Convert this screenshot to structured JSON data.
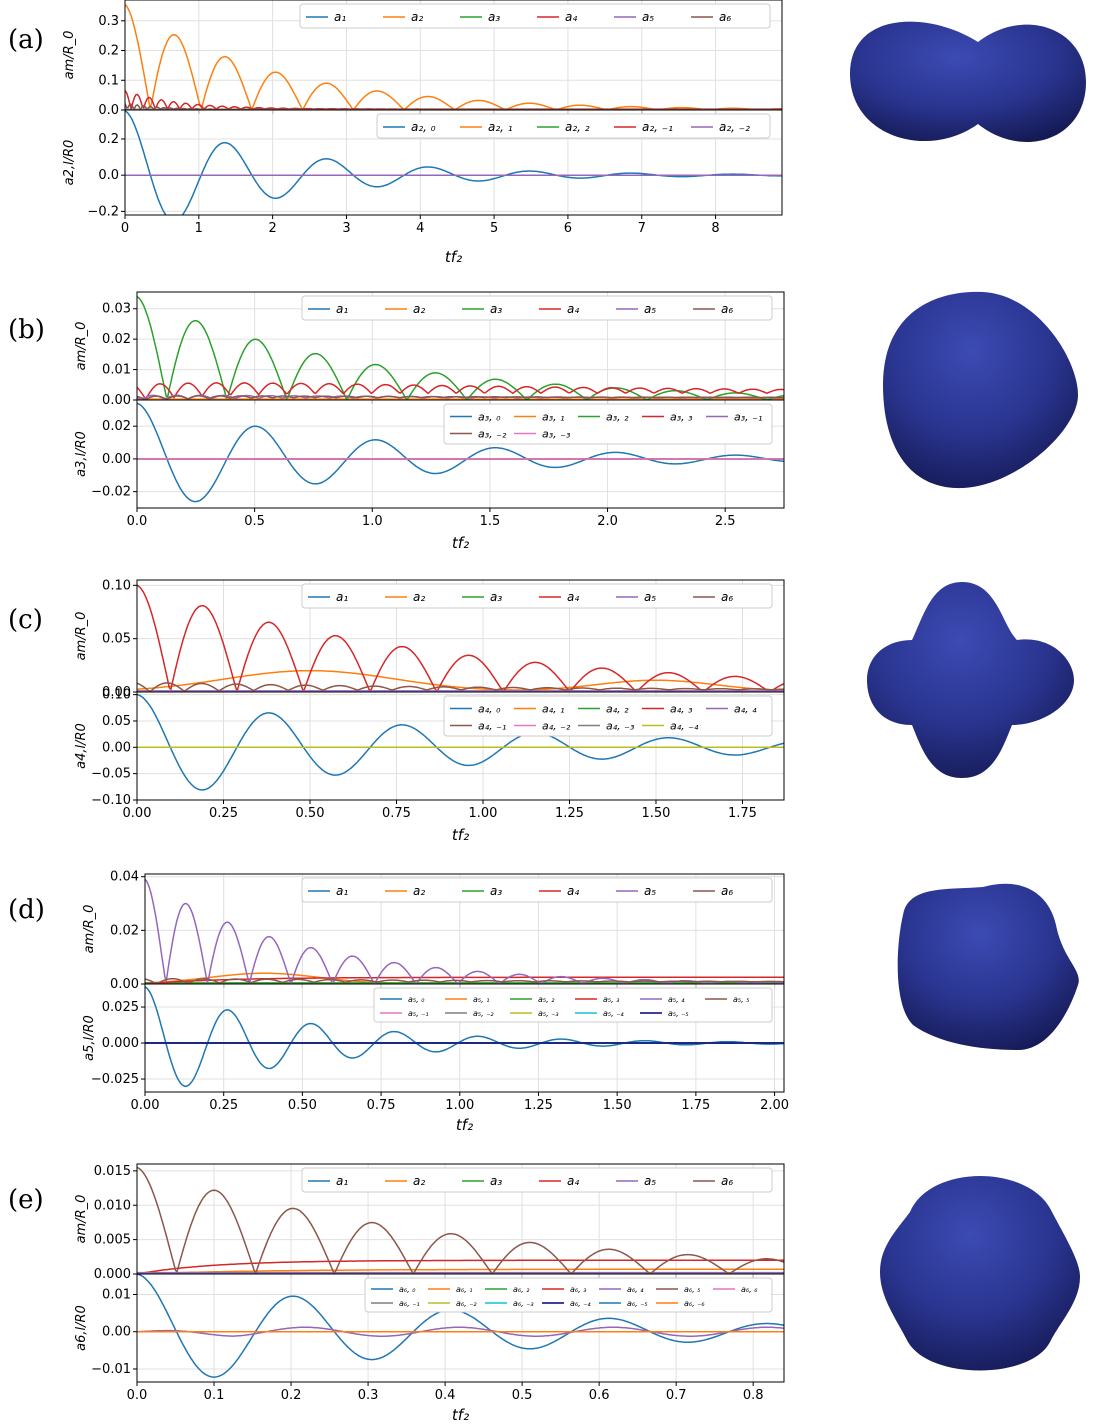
{
  "figure_title": "",
  "colors": {
    "C0": "#1f77b4",
    "C1": "#ff7f0e",
    "C2": "#2ca02c",
    "C3": "#d62728",
    "C4": "#9467bd",
    "C5": "#8c564b",
    "C6": "#e377c2",
    "C7": "#7f7f7f",
    "C8": "#bcbd22",
    "C9": "#17becf",
    "C10": "#000080",
    "shape_fill": "#2a3590",
    "shape_light": "#3c4bb4",
    "shape_dark": "#151a55"
  },
  "chart_data": [
    {
      "panel": "(a)",
      "type": "line",
      "xlabel": "tf₂",
      "xlim": [
        0,
        8.9
      ],
      "xticks": [
        "0",
        "1",
        "2",
        "3",
        "4",
        "5",
        "6",
        "7",
        "8"
      ],
      "shape_icon": "peanut-shape",
      "top": {
        "ylabel": "a_m/R_0",
        "ylim": [
          0,
          0.37
        ],
        "yticks": [
          "0.0",
          "0.1",
          "0.2",
          "0.3"
        ],
        "legend": [
          "a₁",
          "a₂",
          "a₃",
          "a₄",
          "a₅",
          "a₆"
        ],
        "legend_location": "upper right",
        "series": [
          {
            "name": "a₁",
            "kind": "flat",
            "a0": 0.001
          },
          {
            "name": "a₂",
            "kind": "damped_abs",
            "A": 0.355,
            "T": 1.375,
            "tau": 2.0,
            "phi": 0
          },
          {
            "name": "a₃",
            "kind": "flat",
            "a0": 0.002
          },
          {
            "name": "a₄",
            "kind": "damped_abs",
            "A": 0.065,
            "T": 0.33,
            "tau": 0.7,
            "phi": 0,
            "floor": 0.003
          },
          {
            "name": "a₅",
            "kind": "flat",
            "a0": 0.001
          },
          {
            "name": "a₆",
            "kind": "damped_abs",
            "A": 0.025,
            "T": 0.18,
            "tau": 0.4,
            "phi": 0.5,
            "floor": 0.002
          }
        ]
      },
      "bottom": {
        "ylabel": "a_{2,l}/R_0",
        "ylim": [
          -0.22,
          0.36
        ],
        "yticks": [
          "−0.2",
          "0.0",
          "0.2"
        ],
        "legend": [
          "a₂, ₀",
          "a₂, ₁",
          "a₂, ₂",
          "a₂, ₋₁",
          "a₂, ₋₂"
        ],
        "legend_location": "upper right",
        "series": [
          {
            "name": "a₂, ₀",
            "kind": "damped_cos",
            "A": 0.355,
            "T": 1.375,
            "tau": 2.0
          },
          {
            "name": "a₂, ₁",
            "kind": "flat",
            "a0": 0
          },
          {
            "name": "a₂, ₂",
            "kind": "flat",
            "a0": 0
          },
          {
            "name": "a₂, ₋₁",
            "kind": "flat",
            "a0": 0
          },
          {
            "name": "a₂, ₋₂",
            "kind": "flat",
            "a0": 0
          }
        ]
      }
    },
    {
      "panel": "(b)",
      "type": "line",
      "xlabel": "tf₂",
      "xlim": [
        0,
        2.75
      ],
      "xticks": [
        "0.0",
        "0.5",
        "1.0",
        "1.5",
        "2.0",
        "2.5"
      ],
      "shape_icon": "rounded-triangle-shape",
      "top": {
        "ylabel": "a_m/R_0",
        "ylim": [
          0,
          0.0355
        ],
        "yticks": [
          "0.00",
          "0.01",
          "0.02",
          "0.03"
        ],
        "legend": [
          "a₁",
          "a₂",
          "a₃",
          "a₄",
          "a₅",
          "a₆"
        ],
        "legend_location": "upper right",
        "series": [
          {
            "name": "a₁",
            "kind": "flat",
            "a0": 0.0002
          },
          {
            "name": "a₂",
            "kind": "flat",
            "a0": 0.0003
          },
          {
            "name": "a₃",
            "kind": "damped_abs",
            "A": 0.034,
            "T": 0.51,
            "tau": 0.95,
            "phi": 0
          },
          {
            "name": "a₄",
            "kind": "damped_abs",
            "A": 0.005,
            "T": 0.24,
            "tau": 2.0,
            "phi": 0.6,
            "floor": 0.0022
          },
          {
            "name": "a₅",
            "kind": "damped_abs",
            "A": 0.0015,
            "T": 0.2,
            "tau": 1.0,
            "phi": 1.0,
            "floor": 0.0007
          },
          {
            "name": "a₆",
            "kind": "damped_abs",
            "A": 0.0012,
            "T": 0.18,
            "tau": 1.0,
            "phi": 0.3,
            "floor": 0.0008
          }
        ]
      },
      "bottom": {
        "ylabel": "a_{3,l}/R_0",
        "ylim": [
          -0.03,
          0.036
        ],
        "yticks": [
          "−0.02",
          "0.00",
          "0.02"
        ],
        "legend": [
          "a₃, ₀",
          "a₃, ₁",
          "a₃, ₂",
          "a₃, ₃",
          "a₃, ₋₁",
          "a₃, ₋₂",
          "a₃, ₋₃"
        ],
        "legend_location": "upper right",
        "series": [
          {
            "name": "a₃, ₀",
            "kind": "damped_cos",
            "A": 0.034,
            "T": 0.51,
            "tau": 0.95
          },
          {
            "name": "a₃, ₁",
            "kind": "flat",
            "a0": 0
          },
          {
            "name": "a₃, ₂",
            "kind": "flat",
            "a0": 0
          },
          {
            "name": "a₃, ₃",
            "kind": "flat",
            "a0": 0
          },
          {
            "name": "a₃, ₋₁",
            "kind": "flat",
            "a0": 0
          },
          {
            "name": "a₃, ₋₂",
            "kind": "flat",
            "a0": 0
          },
          {
            "name": "a₃, ₋₃",
            "kind": "flat",
            "a0": 0
          }
        ]
      }
    },
    {
      "panel": "(c)",
      "type": "line",
      "xlabel": "tf₂",
      "xlim": [
        0,
        1.87
      ],
      "xticks": [
        "0.00",
        "0.25",
        "0.50",
        "0.75",
        "1.00",
        "1.25",
        "1.50",
        "1.75"
      ],
      "shape_icon": "four-lobed-shape",
      "top": {
        "ylabel": "a_m/R_0",
        "ylim": [
          0,
          0.105
        ],
        "yticks": [
          "0.00",
          "0.05",
          "0.10"
        ],
        "legend": [
          "a₁",
          "a₂",
          "a₃",
          "a₄",
          "a₅",
          "a₆"
        ],
        "legend_location": "upper right",
        "series": [
          {
            "name": "a₁",
            "kind": "flat",
            "a0": 0.0005
          },
          {
            "name": "a₂",
            "kind": "hump",
            "A": 0.02,
            "c": 0.5,
            "w": 0.35,
            "A2": 0.011,
            "c2": 1.5,
            "w2": 0.25
          },
          {
            "name": "a₃",
            "kind": "flat",
            "a0": 0.0005
          },
          {
            "name": "a₄",
            "kind": "damped_abs",
            "A": 0.1,
            "T": 0.385,
            "tau": 0.9,
            "phi": 0
          },
          {
            "name": "a₅",
            "kind": "flat",
            "a0": 0.001
          },
          {
            "name": "a₆",
            "kind": "damped_abs",
            "A": 0.009,
            "T": 0.2,
            "tau": 0.8,
            "phi": 0.4,
            "floor": 0.002
          }
        ]
      },
      "bottom": {
        "ylabel": "a_{4,l}/R_0",
        "ylim": [
          -0.1,
          0.105
        ],
        "yticks": [
          "−0.10",
          "−0.05",
          "0.00",
          "0.05",
          "0.10"
        ],
        "legend": [
          "a₄, ₀",
          "a₄, ₁",
          "a₄, ₂",
          "a₄, ₃",
          "a₄, ₄",
          "a₄, ₋₁",
          "a₄, ₋₂",
          "a₄, ₋₃",
          "a₄, ₋₄"
        ],
        "legend_location": "upper right",
        "series": [
          {
            "name": "a₄, ₀",
            "kind": "damped_cos",
            "A": 0.1,
            "T": 0.385,
            "tau": 0.9
          },
          {
            "name": "a₄, ₁",
            "kind": "flat",
            "a0": 0
          },
          {
            "name": "a₄, ₂",
            "kind": "flat",
            "a0": 0
          },
          {
            "name": "a₄, ₃",
            "kind": "flat",
            "a0": 0
          },
          {
            "name": "a₄, ₄",
            "kind": "flat",
            "a0": 0
          },
          {
            "name": "a₄, ₋₁",
            "kind": "flat",
            "a0": 0
          },
          {
            "name": "a₄, ₋₂",
            "kind": "flat",
            "a0": 0
          },
          {
            "name": "a₄, ₋₃",
            "kind": "flat",
            "a0": 0
          },
          {
            "name": "a₄, ₋₄",
            "kind": "flat",
            "a0": 0
          }
        ]
      }
    },
    {
      "panel": "(d)",
      "type": "line",
      "xlabel": "tf₂",
      "xlim": [
        0,
        2.03
      ],
      "xticks": [
        "0.00",
        "0.25",
        "0.50",
        "0.75",
        "1.00",
        "1.25",
        "1.50",
        "1.75",
        "2.00"
      ],
      "shape_icon": "pentagon-blob-shape",
      "top": {
        "ylabel": "a_m/R_0",
        "ylim": [
          0,
          0.041
        ],
        "yticks": [
          "0.00",
          "0.02",
          "0.04"
        ],
        "legend": [
          "a₁",
          "a₂",
          "a₃",
          "a₄",
          "a₅",
          "a₆"
        ],
        "legend_location": "upper right",
        "series": [
          {
            "name": "a₁",
            "kind": "flat",
            "a0": 0.0003
          },
          {
            "name": "a₂",
            "kind": "hump",
            "A": 0.004,
            "c": 0.38,
            "w": 0.25,
            "A2": 0,
            "c2": 1,
            "w2": 1
          },
          {
            "name": "a₃",
            "kind": "flat",
            "a0": 0.0004
          },
          {
            "name": "a₄",
            "kind": "rise",
            "A": 0.0025,
            "rate": 4.0
          },
          {
            "name": "a₅",
            "kind": "damped_abs",
            "A": 0.039,
            "T": 0.265,
            "tau": 0.5,
            "phi": 0
          },
          {
            "name": "a₆",
            "kind": "damped_abs",
            "A": 0.002,
            "T": 0.2,
            "tau": 0.8,
            "phi": 0.4,
            "floor": 0.0008
          }
        ]
      },
      "bottom": {
        "ylabel": "a_{5,l}/R_0",
        "ylim": [
          -0.034,
          0.041
        ],
        "yticks": [
          "−0.025",
          "0.000",
          "0.025"
        ],
        "legend": [
          "a₅, ₀",
          "a₅, ₁",
          "a₅, ₂",
          "a₅, ₃",
          "a₅, ₄",
          "a₅, ₅",
          "a₅, ₋₁",
          "a₅, ₋₂",
          "a₅, ₋₃",
          "a₅, ₋₄",
          "a₅, ₋₅"
        ],
        "legend_location": "upper right",
        "series": [
          {
            "name": "a₅, ₀",
            "kind": "damped_cos",
            "A": 0.039,
            "T": 0.265,
            "tau": 0.5
          },
          {
            "name": "a₅, ₁",
            "kind": "flat",
            "a0": 0
          },
          {
            "name": "a₅, ₂",
            "kind": "flat",
            "a0": 0
          },
          {
            "name": "a₅, ₃",
            "kind": "flat",
            "a0": 0
          },
          {
            "name": "a₅, ₄",
            "kind": "flat",
            "a0": 0
          },
          {
            "name": "a₅, ₅",
            "kind": "flat",
            "a0": 0
          },
          {
            "name": "a₅, ₋₁",
            "kind": "flat",
            "a0": 0
          },
          {
            "name": "a₅, ₋₂",
            "kind": "flat",
            "a0": 0
          },
          {
            "name": "a₅, ₋₃",
            "kind": "flat",
            "a0": 0
          },
          {
            "name": "a₅, ₋₄",
            "kind": "flat",
            "a0": 0
          },
          {
            "name": "a₅, ₋₅",
            "kind": "flat",
            "a0": 0
          }
        ]
      }
    },
    {
      "panel": "(e)",
      "type": "line",
      "xlabel": "tf₂",
      "xlim": [
        0,
        0.84
      ],
      "xticks": [
        "0.0",
        "0.1",
        "0.2",
        "0.3",
        "0.4",
        "0.5",
        "0.6",
        "0.7",
        "0.8"
      ],
      "shape_icon": "hexagon-blob-shape",
      "top": {
        "ylabel": "a_m/R_0",
        "ylim": [
          0,
          0.016
        ],
        "yticks": [
          "0.000",
          "0.005",
          "0.010",
          "0.015"
        ],
        "legend": [
          "a₁",
          "a₂",
          "a₃",
          "a₄",
          "a₅",
          "a₆"
        ],
        "legend_location": "upper right",
        "series": [
          {
            "name": "a₁",
            "kind": "flat",
            "a0": 0.0001
          },
          {
            "name": "a₂",
            "kind": "rise",
            "A": 0.0007,
            "rate": 6.0
          },
          {
            "name": "a₃",
            "kind": "flat",
            "a0": 0.0001
          },
          {
            "name": "a₄",
            "kind": "rise",
            "A": 0.002,
            "rate": 10.0
          },
          {
            "name": "a₅",
            "kind": "flat",
            "a0": 0.0002
          },
          {
            "name": "a₆",
            "kind": "damped_abs",
            "A": 0.0155,
            "T": 0.205,
            "tau": 0.42,
            "phi": 0
          }
        ]
      },
      "bottom": {
        "ylabel": "a_{6,l}/R_0",
        "ylim": [
          -0.0135,
          0.0155
        ],
        "yticks": [
          "−0.01",
          "0.00",
          "0.01"
        ],
        "legend": [
          "a₆, ₀",
          "a₆, ₁",
          "a₆, ₂",
          "a₆, ₃",
          "a₆, ₄",
          "a₆, ₅",
          "a₆, ₆",
          "a₆, ₋₁",
          "a₆, ₋₂",
          "a₆, ₋₃",
          "a₆, ₋₄",
          "a₆, ₋₅",
          "a₆, ₋₆"
        ],
        "legend_location": "upper right",
        "series": [
          {
            "name": "a₆, ₀",
            "kind": "damped_cos",
            "A": 0.0155,
            "T": 0.205,
            "tau": 0.42
          },
          {
            "name": "a₆, ₁",
            "kind": "flat",
            "a0": 0
          },
          {
            "name": "a₆, ₂",
            "kind": "flat",
            "a0": 0
          },
          {
            "name": "a₆, ₃",
            "kind": "flat",
            "a0": 0
          },
          {
            "name": "a₆, ₄",
            "kind": "sine",
            "A": 0.0012,
            "T": 0.2,
            "phi": 1.0
          },
          {
            "name": "a₆, ₅",
            "kind": "flat",
            "a0": 0
          },
          {
            "name": "a₆, ₆",
            "kind": "flat",
            "a0": 0
          },
          {
            "name": "a₆, ₋₁",
            "kind": "flat",
            "a0": 0
          },
          {
            "name": "a₆, ₋₂",
            "kind": "flat",
            "a0": 0
          },
          {
            "name": "a₆, ₋₃",
            "kind": "flat",
            "a0": 0
          },
          {
            "name": "a₆, ₋₄",
            "kind": "flat",
            "a0": 0
          },
          {
            "name": "a₆, ₋₅",
            "kind": "flat",
            "a0": 0
          },
          {
            "name": "a₆, ₋₆",
            "kind": "flat",
            "a0": 0
          }
        ]
      }
    }
  ]
}
